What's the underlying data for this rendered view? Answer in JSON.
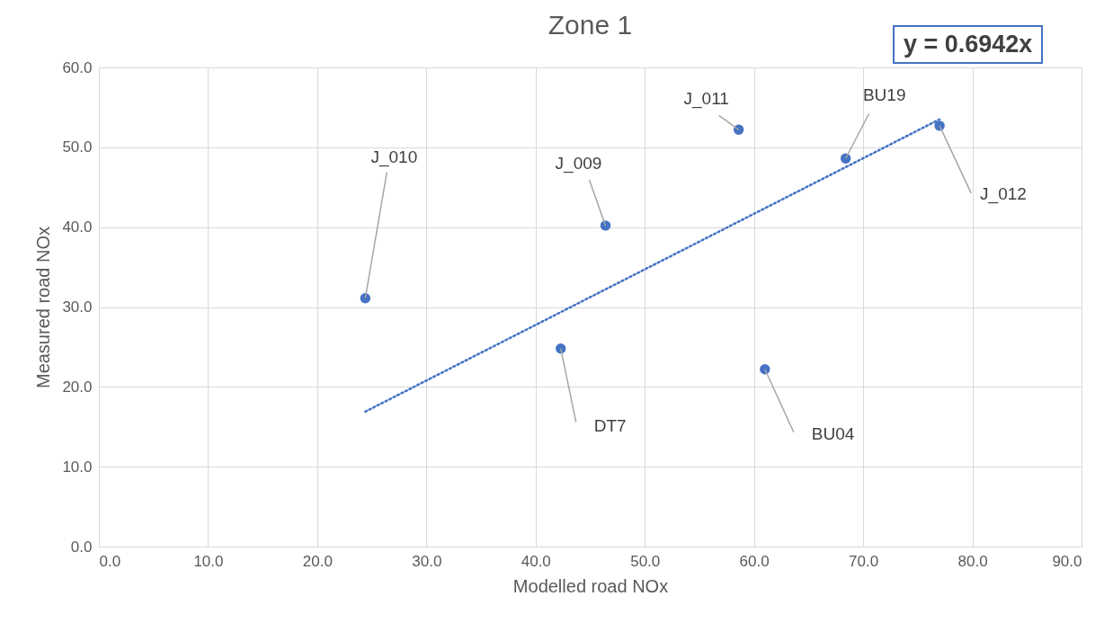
{
  "chart_data": {
    "type": "scatter",
    "title": "Zone 1",
    "xlabel": "Modelled road NOx",
    "ylabel": "Measured road NOx",
    "x": [
      24.4,
      46.4,
      42.3,
      58.6,
      61.0,
      68.4,
      77.0
    ],
    "series": [
      {
        "color": "#4472c4",
        "values": [
          31.1,
          40.2,
          24.8,
          52.2,
          22.2,
          48.6,
          52.7
        ]
      },
      {
        "type": "line",
        "color": "#4472c4",
        "line_style": "dotted",
        "marker": "none",
        "x": [
          24.4,
          77.0
        ],
        "values": [
          16.9,
          53.5
        ]
      }
    ],
    "annotations": [
      {
        "text": "J_010",
        "x": 24.4,
        "y": 31.1
      },
      {
        "text": "J_009",
        "x": 46.4,
        "y": 40.2
      },
      {
        "text": "DT7",
        "x": 42.3,
        "y": 24.8
      },
      {
        "text": "J_011",
        "x": 58.6,
        "y": 52.2
      },
      {
        "text": "BU04",
        "x": 61.0,
        "y": 22.2
      },
      {
        "text": "BU19",
        "x": 68.4,
        "y": 48.6
      },
      {
        "text": "J_012",
        "x": 77.0,
        "y": 52.7
      },
      "y = 0.6942x"
    ],
    "xlim": [
      0,
      90
    ],
    "ylim": [
      0,
      60
    ],
    "xticks": [
      {
        "value": 0,
        "label": "0.0"
      },
      {
        "value": 10,
        "label": "10.0"
      },
      {
        "value": 20,
        "label": "20.0"
      },
      {
        "value": 30,
        "label": "30.0"
      },
      {
        "value": 40,
        "label": "40.0"
      },
      {
        "value": 50,
        "label": "50.0"
      },
      {
        "value": 60,
        "label": "60.0"
      },
      {
        "value": 70,
        "label": "70.0"
      },
      {
        "value": 80,
        "label": "80.0"
      },
      {
        "value": 90,
        "label": "90.0"
      }
    ],
    "yticks": [
      {
        "value": 0,
        "label": "0.0"
      },
      {
        "value": 10,
        "label": "10.0"
      },
      {
        "value": 20,
        "label": "20.0"
      },
      {
        "value": 30,
        "label": "30.0"
      },
      {
        "value": 40,
        "label": "40.0"
      },
      {
        "value": 50,
        "label": "50.0"
      },
      {
        "value": 60,
        "label": "60.0"
      }
    ],
    "grid": true,
    "marker": "circle"
  }
}
